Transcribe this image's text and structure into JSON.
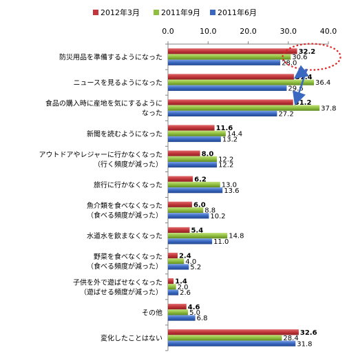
{
  "chart_data": {
    "type": "bar",
    "orientation": "horizontal",
    "xlim": [
      0,
      40
    ],
    "xticks": [
      "0.0",
      "10.0",
      "20.0",
      "30.0",
      "40.0"
    ],
    "grid": false,
    "legend_position": "top",
    "categories": [
      [
        "防災用品を準備するようになった"
      ],
      [
        "ニュースを見るようになった"
      ],
      [
        "食品の購入時に産地を気にするように",
        "なった"
      ],
      [
        "新聞を読むようになった"
      ],
      [
        "アウトドアやレジャーに行かなくなった",
        "（行く頻度が減った）"
      ],
      [
        "旅行に行かなくなった"
      ],
      [
        "魚介類を食べなくなった",
        "（食べる頻度が減った）"
      ],
      [
        "水道水を飲まなくなった"
      ],
      [
        "野菜を食べなくなった",
        "（食べる頻度が減った）"
      ],
      [
        "子供を外で遊ばせなくなった",
        "（遊ばせる頻度が減った）"
      ],
      [
        "その他"
      ],
      [
        "変化したことはない"
      ]
    ],
    "series": [
      {
        "name": "2012年3月",
        "color": "#c0363a",
        "values": [
          32.2,
          31.4,
          31.2,
          11.6,
          8.0,
          6.2,
          6.0,
          5.4,
          2.4,
          1.4,
          4.6,
          32.6
        ]
      },
      {
        "name": "2011年9月",
        "color": "#8fbf3f",
        "values": [
          30.6,
          36.4,
          37.8,
          14.4,
          12.2,
          13.0,
          8.8,
          14.8,
          4.0,
          2.0,
          5.0,
          28.4
        ]
      },
      {
        "name": "2011年6月",
        "color": "#3a68c0",
        "values": [
          28.0,
          29.6,
          27.2,
          13.2,
          12.2,
          13.6,
          10.2,
          11.0,
          5.2,
          2.6,
          6.8,
          31.8
        ]
      }
    ],
    "data_labels": [
      [
        "32.2",
        "30.6",
        "28.0"
      ],
      [
        "31.4",
        "36.4",
        "29.6"
      ],
      [
        "31.2",
        "37.8",
        "27.2"
      ],
      [
        "11.6",
        "14.4",
        "13.2"
      ],
      [
        "8.0",
        "12.2",
        "12.2"
      ],
      [
        "6.2",
        "13.0",
        "13.6"
      ],
      [
        "6.0",
        "8.8",
        "10.2"
      ],
      [
        "5.4",
        "14.8",
        "11.0"
      ],
      [
        "2.4",
        "4.0",
        "5.2"
      ],
      [
        "1.4",
        "2.0",
        "2.6"
      ],
      [
        "4.6",
        "5.0",
        "6.8"
      ],
      [
        "32.6",
        "28.4",
        "31.8"
      ]
    ],
    "annotations": [
      "highlight-ellipse-32.2",
      "arrow-to-31.4",
      "arrow-to-31.2"
    ]
  }
}
